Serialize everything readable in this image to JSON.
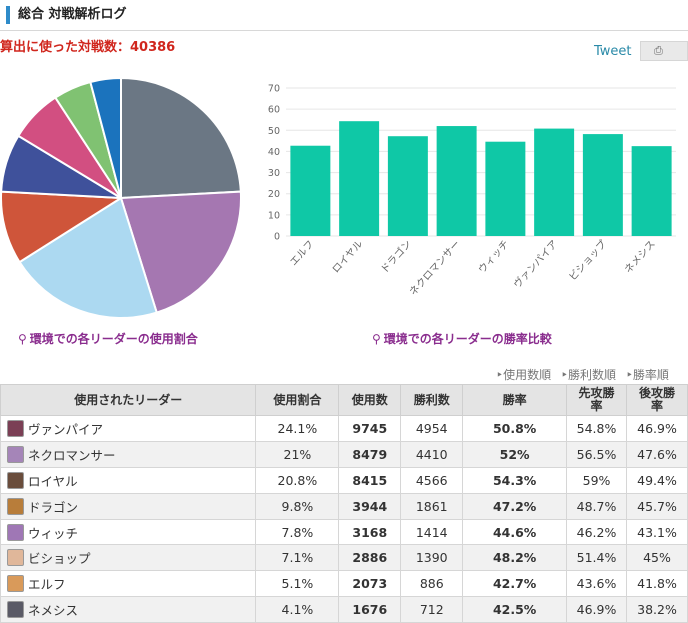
{
  "header": {
    "title": "総合 対戦解析ログ"
  },
  "summary": {
    "total_label": "算出に使った対戦数：40386"
  },
  "share": {
    "tweet_label": "Tweet",
    "share_icon": "bookmark-icon",
    "share_glyph": "⎙"
  },
  "captions": {
    "pin_glyph": "⚲",
    "usage": "環境での各リーダーの使用割合",
    "winrate": "環境での各リーダーの勝率比較"
  },
  "sort": {
    "by_usage": "‣使用数順",
    "by_wins": "‣勝利数順",
    "by_rate": "‣勝率順"
  },
  "table": {
    "headers": [
      "使用されたリーダー",
      "使用割合",
      "使用数",
      "勝利数",
      "勝率",
      "先攻勝率",
      "後攻勝率"
    ],
    "header_first_rate": "先攻勝\n率",
    "rows": [
      {
        "name": "ヴァンパイア",
        "share": "24.1%",
        "count": "9745",
        "wins": "4954",
        "rate": "50.8%",
        "first": "54.8%",
        "second": "46.9%",
        "color": "#7b3f55",
        "highlight": true
      },
      {
        "name": "ネクロマンサー",
        "share": "21%",
        "count": "8479",
        "wins": "4410",
        "rate": "52%",
        "first": "56.5%",
        "second": "47.6%",
        "color": "#a585b8",
        "highlight": true
      },
      {
        "name": "ロイヤル",
        "share": "20.8%",
        "count": "8415",
        "wins": "4566",
        "rate": "54.3%",
        "first": "59%",
        "second": "49.4%",
        "color": "#6a4d3c",
        "highlight": true
      },
      {
        "name": "ドラゴン",
        "share": "9.8%",
        "count": "3944",
        "wins": "1861",
        "rate": "47.2%",
        "first": "48.7%",
        "second": "45.7%",
        "color": "#b87d3a",
        "highlight": false
      },
      {
        "name": "ウィッチ",
        "share": "7.8%",
        "count": "3168",
        "wins": "1414",
        "rate": "44.6%",
        "first": "46.2%",
        "second": "43.1%",
        "color": "#9f77b5",
        "highlight": false
      },
      {
        "name": "ビショップ",
        "share": "7.1%",
        "count": "2886",
        "wins": "1390",
        "rate": "48.2%",
        "first": "51.4%",
        "second": "45%",
        "color": "#e0b79a",
        "highlight": false
      },
      {
        "name": "エルフ",
        "share": "5.1%",
        "count": "2073",
        "wins": "886",
        "rate": "42.7%",
        "first": "43.6%",
        "second": "41.8%",
        "color": "#d99a5a",
        "highlight": false
      },
      {
        "name": "ネメシス",
        "share": "4.1%",
        "count": "1676",
        "wins": "712",
        "rate": "42.5%",
        "first": "46.9%",
        "second": "38.2%",
        "color": "#5a5a66",
        "highlight": false
      }
    ]
  },
  "chart_data": [
    {
      "type": "pie",
      "title": "環境での各リーダーの使用割合",
      "labels": [
        "ヴァンパイア",
        "ネクロマンサー",
        "ロイヤル",
        "ドラゴン",
        "ウィッチ",
        "ビショップ",
        "エルフ",
        "ネメシス"
      ],
      "values": [
        24.1,
        21,
        20.8,
        9.8,
        7.8,
        7.1,
        5.1,
        4.1
      ],
      "colors": [
        "#6b7784",
        "#a577b1",
        "#acd9f1",
        "#cf553a",
        "#3f519b",
        "#d24f81",
        "#80c272",
        "#1b73bd"
      ]
    },
    {
      "type": "bar",
      "title": "環境での各リーダーの勝率比較",
      "categories": [
        "エルフ",
        "ロイヤル",
        "ドラゴン",
        "ネクロマンサー",
        "ウィッチ",
        "ヴァンパイア",
        "ビショップ",
        "ネメシス"
      ],
      "values": [
        42.7,
        54.3,
        47.2,
        52,
        44.6,
        50.8,
        48.2,
        42.5
      ],
      "yticks": [
        "0",
        "10",
        "20",
        "30",
        "40",
        "50",
        "60",
        "70"
      ],
      "ylim": [
        0,
        70
      ],
      "grid": true,
      "bar_color": "#0fc8a6"
    }
  ]
}
